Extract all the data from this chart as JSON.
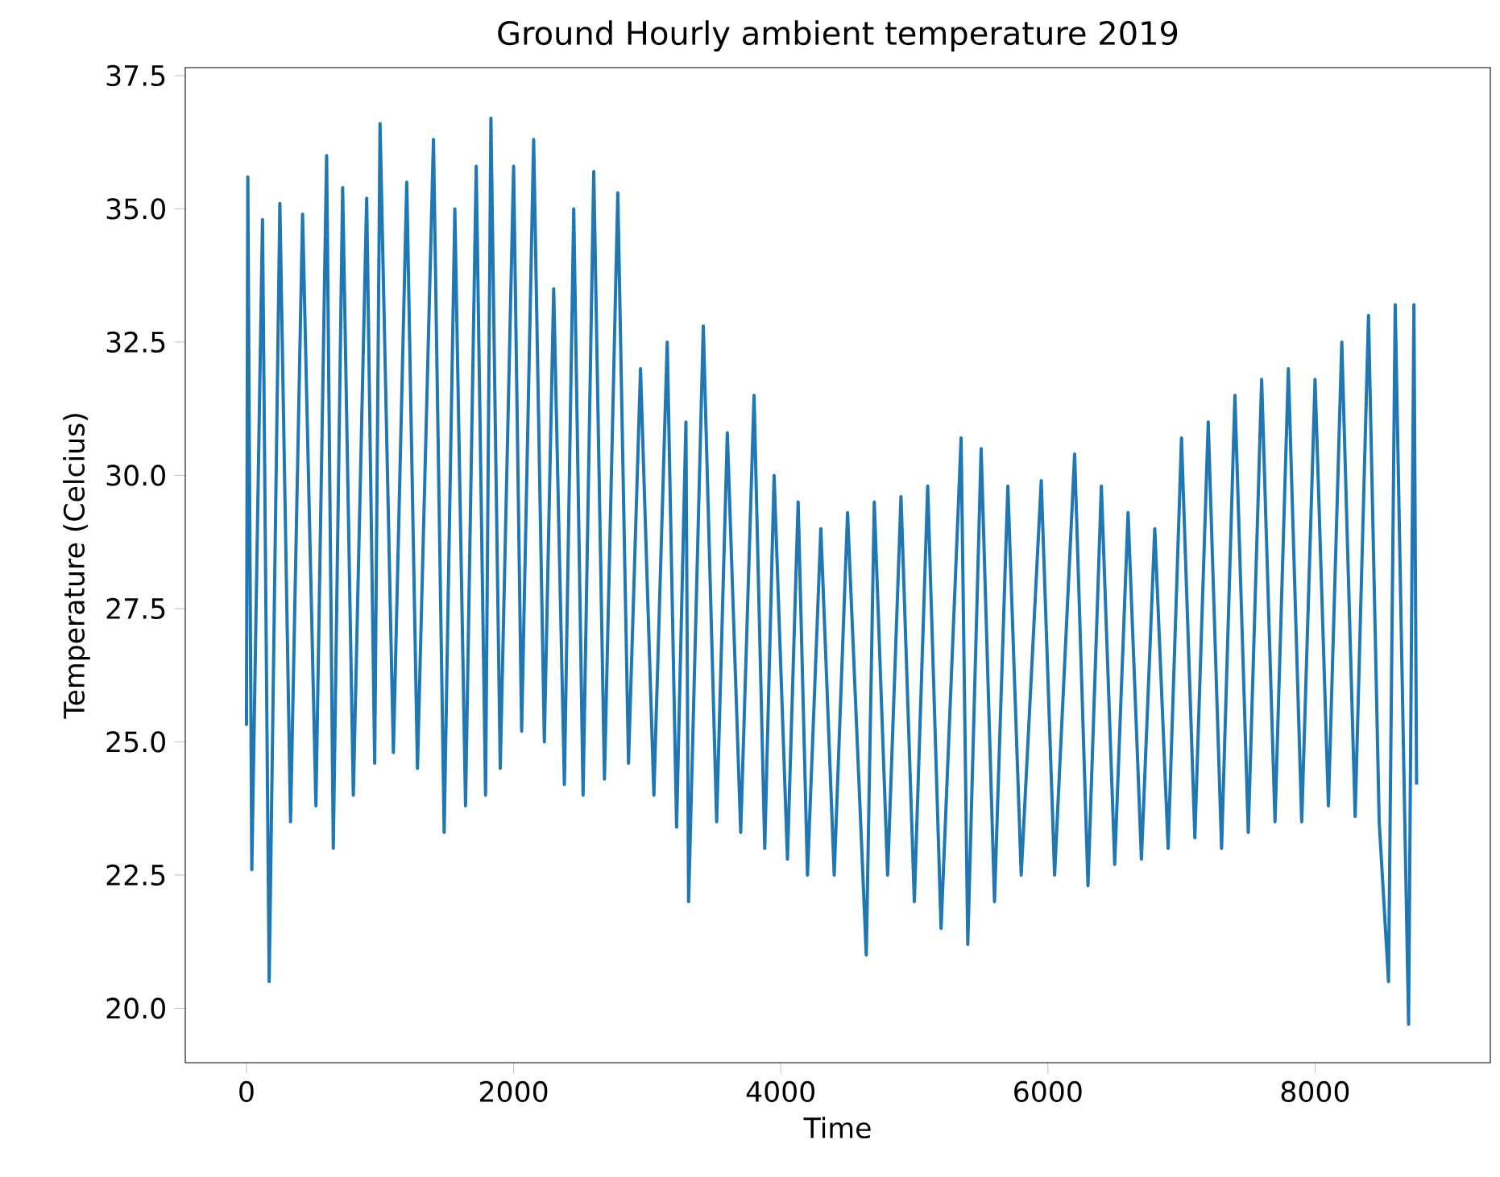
{
  "chart_data": {
    "type": "line",
    "title": "Ground Hourly ambient temperature 2019",
    "xlabel": "Time",
    "ylabel": "Temperature (Celcius)",
    "xlim": [
      -458,
      9312
    ],
    "ylim": [
      18.98,
      37.65
    ],
    "xticks": [
      0,
      2000,
      4000,
      6000,
      8000
    ],
    "yticks": [
      {
        "value": 20,
        "label": "20.0"
      },
      {
        "value": 22.5,
        "label": "22.5"
      },
      {
        "value": 25,
        "label": "25.0"
      },
      {
        "value": 27.5,
        "label": "27.5"
      },
      {
        "value": 30,
        "label": "30.0"
      },
      {
        "value": 32.5,
        "label": "32.5"
      },
      {
        "value": 35,
        "label": "35.0"
      },
      {
        "value": 37.5,
        "label": "37.5"
      }
    ],
    "series": [
      {
        "color": "#1f77b4",
        "x": [
          0,
          10,
          40,
          120,
          170,
          250,
          330,
          420,
          520,
          600,
          650,
          720,
          800,
          900,
          960,
          1000,
          1100,
          1200,
          1280,
          1400,
          1480,
          1560,
          1640,
          1720,
          1790,
          1830,
          1900,
          2000,
          2060,
          2150,
          2230,
          2300,
          2380,
          2450,
          2520,
          2600,
          2680,
          2780,
          2860,
          2950,
          3050,
          3150,
          3220,
          3290,
          3310,
          3420,
          3520,
          3600,
          3700,
          3800,
          3880,
          3950,
          4050,
          4130,
          4200,
          4300,
          4400,
          4500,
          4640,
          4700,
          4800,
          4900,
          5000,
          5100,
          5200,
          5350,
          5400,
          5500,
          5600,
          5700,
          5800,
          5950,
          6050,
          6200,
          6300,
          6400,
          6500,
          6600,
          6700,
          6800,
          6900,
          7000,
          7100,
          7200,
          7300,
          7400,
          7500,
          7600,
          7700,
          7800,
          7900,
          8000,
          8100,
          8200,
          8300,
          8400,
          8480,
          8550,
          8600,
          8700,
          8740,
          8760
        ],
        "values": [
          25.3,
          35.6,
          22.6,
          34.8,
          20.5,
          35.1,
          23.5,
          34.9,
          23.8,
          36.0,
          23.0,
          35.4,
          24.0,
          35.2,
          24.6,
          36.6,
          24.8,
          35.5,
          24.5,
          36.3,
          23.3,
          35.0,
          23.8,
          35.8,
          24.0,
          36.7,
          24.5,
          35.8,
          25.2,
          36.3,
          25.0,
          33.5,
          24.2,
          35.0,
          24.0,
          35.7,
          24.3,
          35.3,
          24.6,
          32.0,
          24.0,
          32.5,
          23.4,
          31.0,
          22.0,
          32.8,
          23.5,
          30.8,
          23.3,
          31.5,
          23.0,
          30.0,
          22.8,
          29.5,
          22.5,
          29.0,
          22.5,
          29.3,
          21.0,
          29.5,
          22.5,
          29.6,
          22.0,
          29.8,
          21.5,
          30.7,
          21.2,
          30.5,
          22.0,
          29.8,
          22.5,
          29.9,
          22.5,
          30.4,
          22.3,
          29.8,
          22.7,
          29.3,
          22.8,
          29.0,
          23.0,
          30.7,
          23.2,
          31.0,
          23.0,
          31.5,
          23.3,
          31.8,
          23.5,
          32.0,
          23.5,
          31.8,
          23.8,
          32.5,
          23.6,
          33.0,
          23.5,
          20.5,
          33.2,
          19.7,
          33.2,
          24.2
        ]
      }
    ]
  }
}
